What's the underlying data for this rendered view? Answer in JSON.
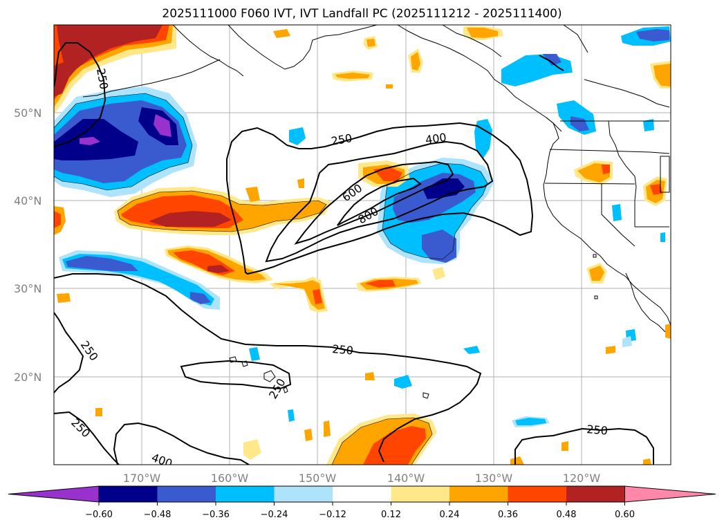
{
  "title": "2025111000 F060 IVT, IVT Landfall PC (2025111212 - 2025111400)",
  "lat_labels": [
    "50°N",
    "40°N",
    "30°N",
    "20°N"
  ],
  "lon_labels": [
    "170°W",
    "160°W",
    "150°W",
    "140°W",
    "130°W",
    "120°W"
  ],
  "colorbar": {
    "colors": [
      "#9932CC",
      "#00008B",
      "#3A5BD0",
      "#00BFFF",
      "#ADE3FB",
      "#FFFFFF",
      "#FFE88A",
      "#FFA500",
      "#FF4500",
      "#B22222",
      "#FF88AA"
    ],
    "ticks": [
      "−0.60",
      "−0.48",
      "−0.36",
      "−0.24",
      "−0.12",
      "0.12",
      "0.24",
      "0.36",
      "0.48",
      "0.60"
    ]
  },
  "contour_labels": [
    "250",
    "250",
    "400",
    "600",
    "800",
    "250",
    "250",
    "250",
    "250",
    "400",
    "250"
  ]
}
